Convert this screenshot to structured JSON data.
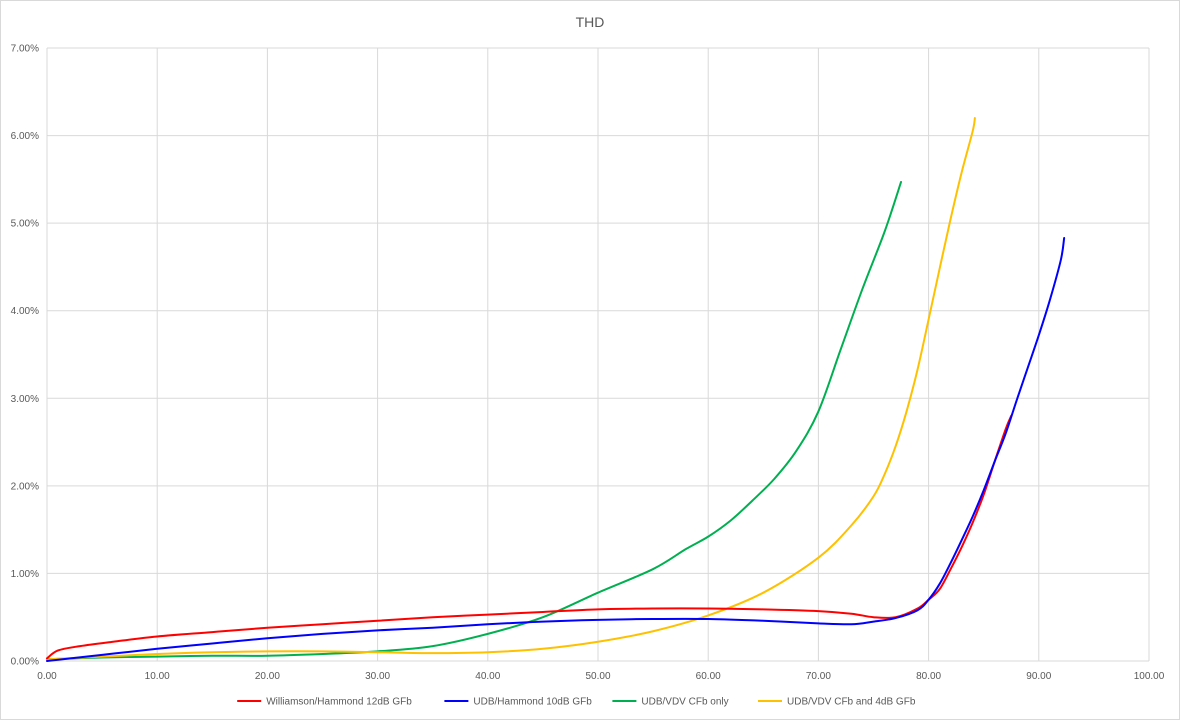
{
  "chart_data": {
    "type": "line",
    "title": "THD",
    "xlabel": "",
    "ylabel": "",
    "xlim": [
      0,
      100
    ],
    "ylim": [
      0,
      0.07
    ],
    "x_ticks": [
      "0.00",
      "10.00",
      "20.00",
      "30.00",
      "40.00",
      "50.00",
      "60.00",
      "70.00",
      "80.00",
      "90.00",
      "100.00"
    ],
    "y_ticks": [
      "0.00%",
      "1.00%",
      "2.00%",
      "3.00%",
      "4.00%",
      "5.00%",
      "6.00%",
      "7.00%"
    ],
    "grid": true,
    "legend_position": "bottom",
    "series": [
      {
        "name": "Williamson/Hammond 12dB GFb",
        "color": "#ff0000",
        "points": [
          [
            0,
            0.0003
          ],
          [
            1,
            0.0012
          ],
          [
            3,
            0.0017
          ],
          [
            6,
            0.0022
          ],
          [
            10,
            0.0028
          ],
          [
            15,
            0.0033
          ],
          [
            20,
            0.0038
          ],
          [
            25,
            0.0042
          ],
          [
            30,
            0.0046
          ],
          [
            35,
            0.005
          ],
          [
            40,
            0.0053
          ],
          [
            45,
            0.0056
          ],
          [
            50,
            0.0059
          ],
          [
            55,
            0.006
          ],
          [
            60,
            0.006
          ],
          [
            65,
            0.0059
          ],
          [
            70,
            0.0057
          ],
          [
            73,
            0.0054
          ],
          [
            75,
            0.005
          ],
          [
            77,
            0.005
          ],
          [
            79,
            0.006
          ],
          [
            80,
            0.007
          ],
          [
            81,
            0.0082
          ],
          [
            82,
            0.0105
          ],
          [
            83,
            0.013
          ],
          [
            84,
            0.0158
          ],
          [
            85,
            0.019
          ],
          [
            86,
            0.0228
          ],
          [
            87,
            0.0265
          ],
          [
            87.5,
            0.028
          ]
        ]
      },
      {
        "name": "UDB/Hammond 10dB GFb",
        "color": "#0000ff",
        "points": [
          [
            0,
            0
          ],
          [
            5,
            0.0007
          ],
          [
            10,
            0.0014
          ],
          [
            15,
            0.002
          ],
          [
            20,
            0.0026
          ],
          [
            25,
            0.0031
          ],
          [
            30,
            0.0035
          ],
          [
            35,
            0.0038
          ],
          [
            40,
            0.0042
          ],
          [
            45,
            0.0045
          ],
          [
            50,
            0.0047
          ],
          [
            55,
            0.0048
          ],
          [
            60,
            0.0048
          ],
          [
            65,
            0.0046
          ],
          [
            70,
            0.0043
          ],
          [
            73,
            0.0042
          ],
          [
            75,
            0.0045
          ],
          [
            77,
            0.0049
          ],
          [
            79,
            0.0058
          ],
          [
            80,
            0.007
          ],
          [
            81,
            0.0088
          ],
          [
            82,
            0.0112
          ],
          [
            83,
            0.0138
          ],
          [
            84,
            0.0165
          ],
          [
            85,
            0.0195
          ],
          [
            86,
            0.0228
          ],
          [
            87,
            0.026
          ],
          [
            88,
            0.0298
          ],
          [
            89,
            0.0335
          ],
          [
            90,
            0.0372
          ],
          [
            91,
            0.0412
          ],
          [
            92,
            0.0458
          ],
          [
            92.3,
            0.0483
          ]
        ]
      },
      {
        "name": "UDB/VDV CFb only",
        "color": "#00b050",
        "points": [
          [
            0,
            0.0002
          ],
          [
            5,
            0.0004
          ],
          [
            10,
            0.0005
          ],
          [
            15,
            0.0006
          ],
          [
            20,
            0.0006
          ],
          [
            25,
            0.0008
          ],
          [
            30,
            0.0011
          ],
          [
            35,
            0.0017
          ],
          [
            40,
            0.0031
          ],
          [
            45,
            0.005
          ],
          [
            50,
            0.0078
          ],
          [
            55,
            0.0105
          ],
          [
            58,
            0.0128
          ],
          [
            60,
            0.0142
          ],
          [
            62,
            0.016
          ],
          [
            64,
            0.0183
          ],
          [
            66,
            0.0208
          ],
          [
            68,
            0.024
          ],
          [
            70,
            0.0285
          ],
          [
            72,
            0.0355
          ],
          [
            74,
            0.0425
          ],
          [
            76,
            0.049
          ],
          [
            77.5,
            0.0547
          ]
        ]
      },
      {
        "name": "UDB/VDV CFb and 4dB GFb",
        "color": "#ffc000",
        "points": [
          [
            0,
            0.0002
          ],
          [
            5,
            0.0005
          ],
          [
            10,
            0.0008
          ],
          [
            15,
            0.001
          ],
          [
            20,
            0.0011
          ],
          [
            25,
            0.0011
          ],
          [
            30,
            0.001
          ],
          [
            35,
            0.0009
          ],
          [
            40,
            0.001
          ],
          [
            45,
            0.0014
          ],
          [
            50,
            0.0022
          ],
          [
            55,
            0.0034
          ],
          [
            60,
            0.0052
          ],
          [
            65,
            0.0078
          ],
          [
            70,
            0.0118
          ],
          [
            73,
            0.0155
          ],
          [
            75,
            0.0188
          ],
          [
            76,
            0.0213
          ],
          [
            77,
            0.0245
          ],
          [
            78,
            0.0285
          ],
          [
            79,
            0.0333
          ],
          [
            80,
            0.039
          ],
          [
            81,
            0.0448
          ],
          [
            82,
            0.0505
          ],
          [
            83,
            0.0558
          ],
          [
            84,
            0.0605
          ],
          [
            84.2,
            0.062
          ]
        ]
      }
    ]
  }
}
